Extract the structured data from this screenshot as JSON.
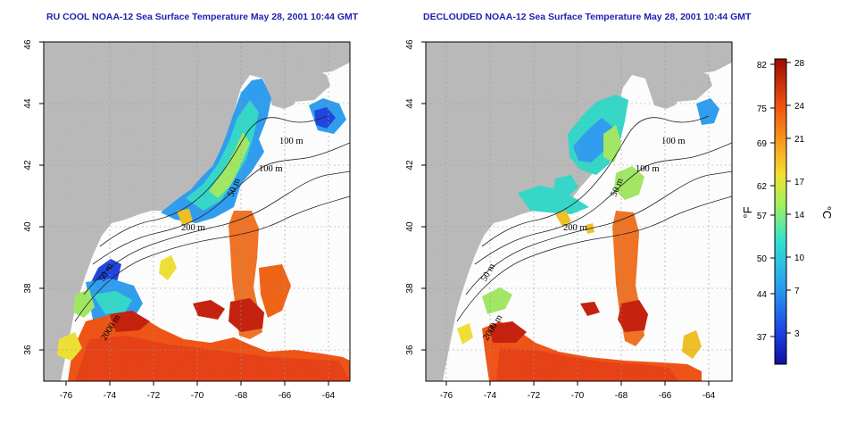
{
  "panels": [
    {
      "title": "RU COOL NOAA-12 Sea Surface Temperature May 28, 2001 10:44 GMT",
      "contour_labels": [
        "100 m",
        "100 m",
        "50 m",
        "200 m",
        "50 m",
        "2000 m"
      ]
    },
    {
      "title": "DECLOUDED NOAA-12 Sea Surface Temperature May 28, 2001 10:44 GMT",
      "contour_labels": [
        "100 m",
        "100 m",
        "50 m",
        "200 m",
        "50 m",
        "2000 m"
      ]
    }
  ],
  "axes": {
    "x_ticks": [
      "-76",
      "-74",
      "-72",
      "-70",
      "-68",
      "-66",
      "-64"
    ],
    "y_ticks": [
      "36",
      "38",
      "40",
      "42",
      "44",
      "46"
    ],
    "lon_range": [
      -77,
      -63
    ],
    "lat_range": [
      35,
      46
    ]
  },
  "colorbar": {
    "fahrenheit_label": "°F",
    "celsius_label": "°C",
    "fahrenheit_ticks": [
      "82",
      "75",
      "69",
      "62",
      "57",
      "50",
      "44",
      "37"
    ],
    "celsius_ticks": [
      "28",
      "24",
      "21",
      "17",
      "14",
      "10",
      "7",
      "3"
    ],
    "range_c": [
      0,
      28
    ]
  },
  "colors": {
    "land": "#b9b9b9",
    "title": "#1f1fb0",
    "cold": "#0a10a0",
    "warm": "#a01000"
  }
}
